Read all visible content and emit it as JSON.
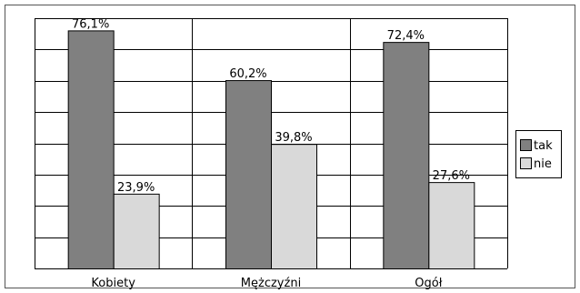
{
  "chart_data": {
    "type": "bar",
    "categories": [
      "Kobiety",
      "Mężczyźni",
      "Ogół"
    ],
    "series": [
      {
        "name": "tak",
        "values": [
          76.1,
          60.2,
          72.4
        ],
        "labels": [
          "76,1%",
          "60,2%",
          "72,4%"
        ]
      },
      {
        "name": "nie",
        "values": [
          23.9,
          39.8,
          27.6
        ],
        "labels": [
          "23,9%",
          "39,8%",
          "27,6%"
        ]
      }
    ],
    "ylim": [
      0,
      80
    ],
    "grid": true,
    "legend_position": "right",
    "colors": {
      "tak": "#808080",
      "nie": "#d9d9d9",
      "bar_edge": "#000000",
      "grid": "#000000"
    }
  }
}
